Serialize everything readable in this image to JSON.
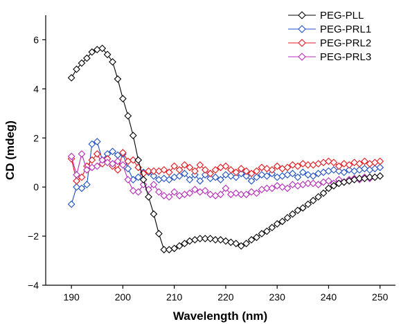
{
  "chart_data": {
    "type": "line",
    "title": "",
    "xlabel": "Wavelength (nm)",
    "ylabel": "CD (mdeg)",
    "xlim": [
      185,
      253
    ],
    "ylim": [
      -4,
      7
    ],
    "x_ticks": [
      190,
      200,
      210,
      220,
      230,
      240,
      250
    ],
    "y_ticks": [
      -4,
      -2,
      0,
      2,
      4,
      6
    ],
    "y_tick_labels": [
      "−4",
      "−2",
      "0",
      "2",
      "4",
      "6"
    ],
    "grid": false,
    "legend_position": "top-right",
    "marker": "open-diamond",
    "x": [
      190,
      191,
      192,
      193,
      194,
      195,
      196,
      197,
      198,
      199,
      200,
      201,
      202,
      203,
      204,
      205,
      206,
      207,
      208,
      209,
      210,
      211,
      212,
      213,
      214,
      215,
      216,
      217,
      218,
      219,
      220,
      221,
      222,
      223,
      224,
      225,
      226,
      227,
      228,
      229,
      230,
      231,
      232,
      233,
      234,
      235,
      236,
      237,
      238,
      239,
      240,
      241,
      242,
      243,
      244,
      245,
      246,
      247,
      248,
      249,
      250
    ],
    "series": [
      {
        "name": "PEG-PLL",
        "color": "#000000",
        "values": [
          4.45,
          4.8,
          5.05,
          5.25,
          5.5,
          5.6,
          5.65,
          5.4,
          5.1,
          4.4,
          3.6,
          2.9,
          2.1,
          1.1,
          0.3,
          -0.4,
          -1.1,
          -1.9,
          -2.55,
          -2.55,
          -2.5,
          -2.4,
          -2.3,
          -2.2,
          -2.15,
          -2.1,
          -2.1,
          -2.1,
          -2.15,
          -2.15,
          -2.2,
          -2.25,
          -2.3,
          -2.4,
          -2.3,
          -2.15,
          -2.05,
          -1.9,
          -1.8,
          -1.65,
          -1.5,
          -1.4,
          -1.25,
          -1.1,
          -0.95,
          -0.85,
          -0.7,
          -0.55,
          -0.4,
          -0.25,
          -0.05,
          0.05,
          0.15,
          0.2,
          0.25,
          0.3,
          0.35,
          0.35,
          0.4,
          0.4,
          0.45
        ]
      },
      {
        "name": "PEG-PRL1",
        "color": "#1f4fc0",
        "values": [
          -0.7,
          0.0,
          -0.05,
          0.1,
          1.75,
          1.85,
          1.1,
          1.35,
          1.45,
          1.3,
          1.35,
          0.75,
          0.3,
          0.4,
          0.6,
          0.6,
          0.45,
          0.3,
          0.35,
          0.3,
          0.4,
          0.45,
          0.55,
          0.3,
          0.5,
          0.25,
          0.5,
          0.35,
          0.4,
          0.3,
          0.5,
          0.45,
          0.4,
          0.55,
          0.45,
          0.25,
          0.4,
          0.5,
          0.45,
          0.55,
          0.4,
          0.45,
          0.5,
          0.55,
          0.4,
          0.6,
          0.5,
          0.45,
          0.55,
          0.6,
          0.65,
          0.7,
          0.65,
          0.6,
          0.7,
          0.65,
          0.7,
          0.75,
          0.7,
          0.75,
          0.8
        ]
      },
      {
        "name": "PEG-PRL2",
        "color": "#e8141c",
        "values": [
          1.15,
          0.25,
          0.4,
          0.85,
          1.1,
          1.35,
          0.95,
          1.15,
          0.85,
          0.7,
          1.4,
          1.05,
          1.1,
          0.8,
          0.55,
          0.65,
          0.65,
          0.65,
          0.7,
          0.6,
          0.85,
          0.7,
          0.9,
          0.8,
          0.65,
          0.9,
          0.7,
          0.55,
          0.7,
          0.8,
          0.85,
          0.7,
          0.6,
          0.75,
          0.65,
          0.55,
          0.65,
          0.8,
          0.75,
          0.7,
          0.85,
          0.75,
          0.8,
          0.9,
          0.85,
          0.95,
          0.9,
          0.9,
          0.95,
          1.0,
          1.05,
          1.0,
          0.85,
          0.95,
          0.9,
          1.0,
          0.95,
          1.05,
          0.95,
          1.0,
          1.05
        ]
      },
      {
        "name": "PEG-PRL3",
        "color": "#b42bb8",
        "values": [
          1.25,
          0.5,
          1.35,
          0.7,
          0.8,
          0.85,
          1.1,
          1.0,
          0.95,
          1.05,
          0.9,
          0.3,
          -0.15,
          -0.2,
          0.1,
          -0.1,
          0.1,
          -0.2,
          -0.35,
          -0.4,
          -0.2,
          -0.35,
          -0.3,
          -0.25,
          -0.1,
          -0.2,
          -0.15,
          -0.3,
          -0.35,
          -0.3,
          -0.05,
          -0.3,
          -0.25,
          -0.3,
          -0.3,
          -0.2,
          -0.25,
          -0.1,
          -0.05,
          -0.05,
          0.05,
          0.0,
          -0.05,
          0.1,
          0.05,
          0.1,
          0.15,
          0.15,
          0.1,
          0.2,
          0.25,
          0.15,
          0.3,
          0.2,
          0.3,
          0.35,
          0.3,
          0.4,
          0.35,
          0.4,
          0.45
        ]
      }
    ]
  }
}
